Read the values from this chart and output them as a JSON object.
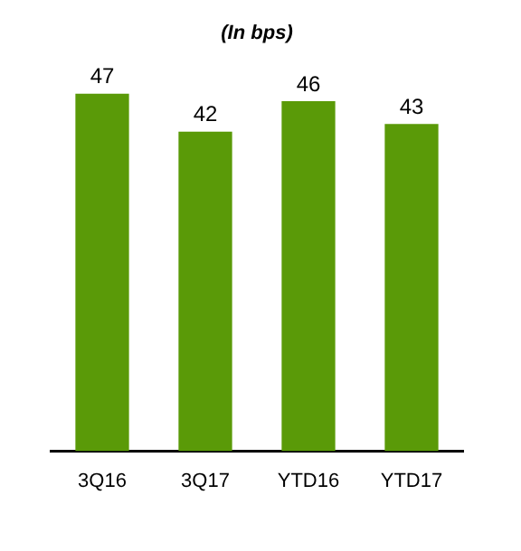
{
  "chart_data": {
    "type": "bar",
    "title": "(In bps)",
    "categories": [
      "3Q16",
      "3Q17",
      "YTD16",
      "YTD17"
    ],
    "values": [
      47,
      42,
      46,
      43
    ],
    "color": "#5a9a08",
    "data_labels": true,
    "grid": false,
    "legend": false
  }
}
